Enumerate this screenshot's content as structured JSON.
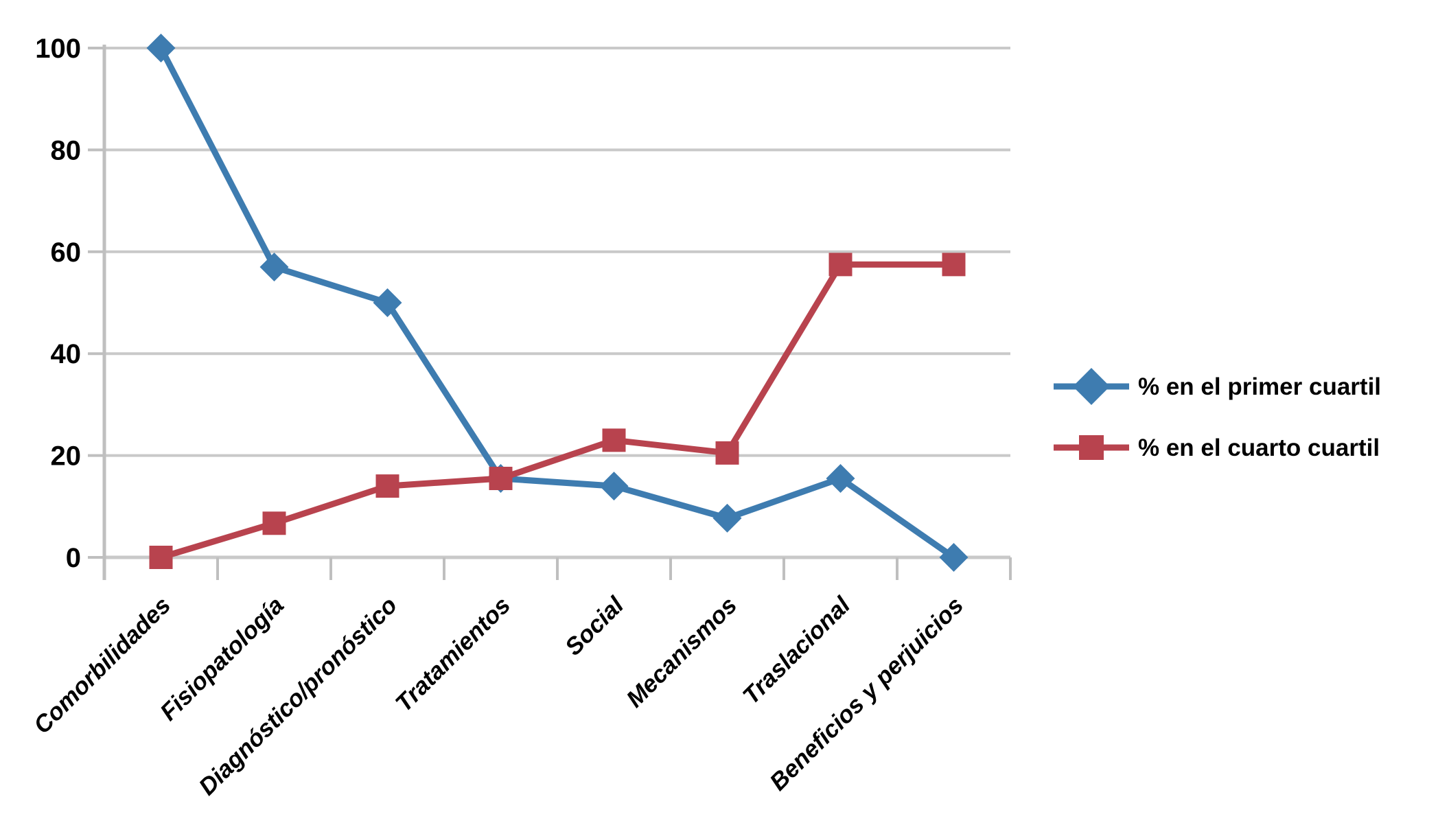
{
  "chart_data": {
    "type": "line",
    "title": "",
    "xlabel": "",
    "ylabel": "",
    "categories": [
      "Comorbilidades",
      "Fisiopatología",
      "Diagnóstico/pronóstico",
      "Tratamientos",
      "Social",
      "Mecanismos",
      "Traslacional",
      "Beneficios y perjuicios"
    ],
    "series": [
      {
        "name": "% en el primer cuartil",
        "marker": "diamond",
        "color": "#3E7CB0",
        "values": [
          100,
          57,
          50,
          15.5,
          14,
          7.7,
          15.5,
          0
        ]
      },
      {
        "name": "% en el cuarto cuartil",
        "marker": "square",
        "color": "#B8434E",
        "values": [
          0,
          6.7,
          14,
          15.5,
          23,
          20.5,
          57.5,
          57.5
        ]
      }
    ],
    "ylim": [
      0,
      100
    ],
    "yticks": [
      0,
      20,
      40,
      60,
      80,
      100
    ],
    "grid": "horizontal",
    "legend_position": "right"
  },
  "colors": {
    "grid": "#C9C9C9",
    "axis": "#BFBFBF",
    "text": "#000000",
    "background": "#FFFFFF"
  }
}
